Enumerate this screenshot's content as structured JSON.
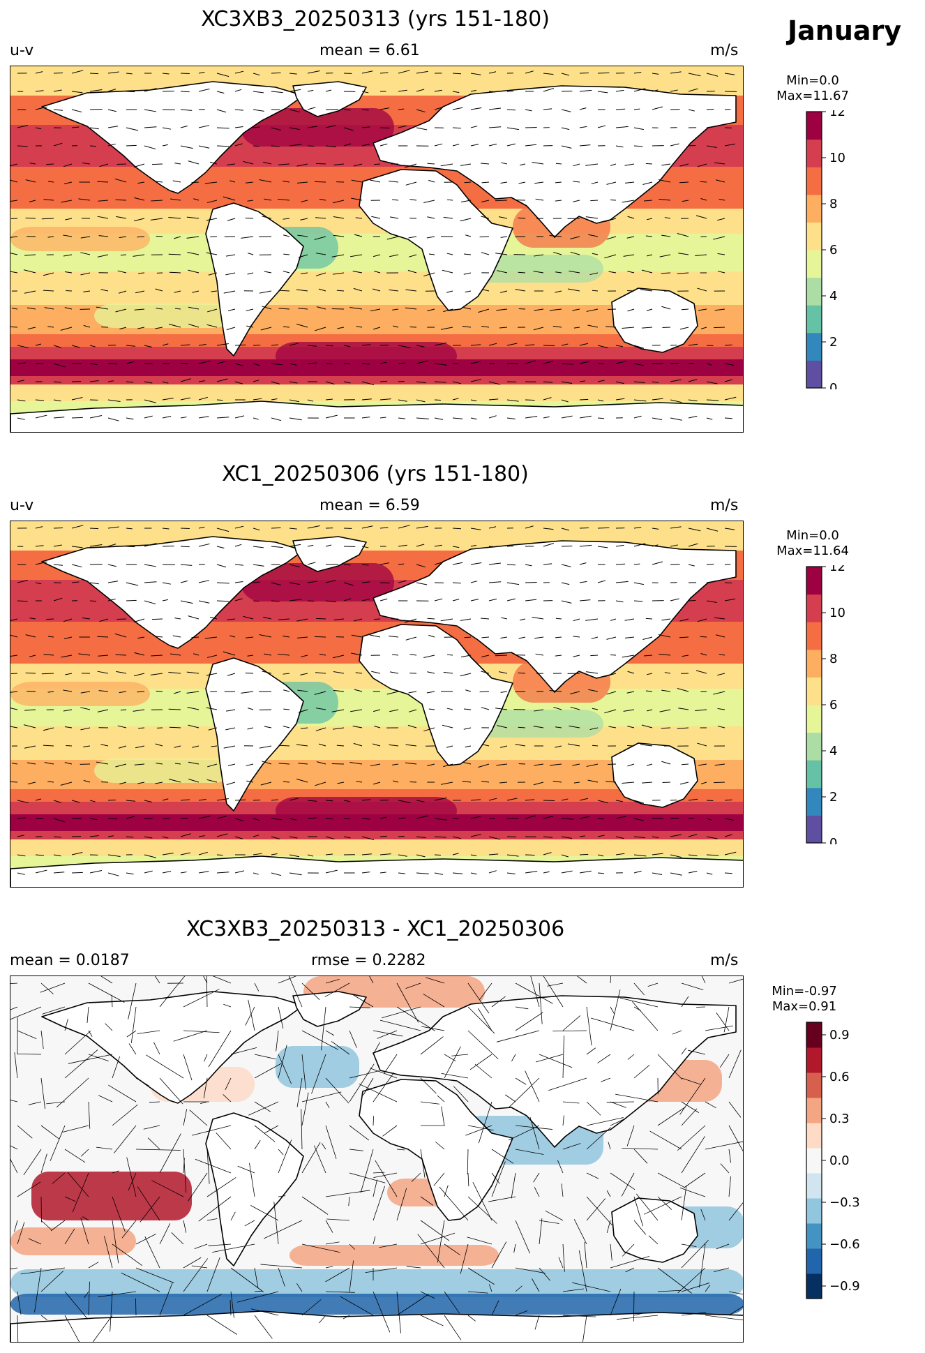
{
  "month": "January",
  "panels": [
    {
      "title": "XC3XB3_20250313 (yrs 151-180)",
      "left_label": "u-v",
      "center_label": "mean = 6.61",
      "right_label": "m/s",
      "cbar_min": "Min=0.0",
      "cbar_max": "Max=11.67",
      "cbar_ticks": [
        "0",
        "2",
        "4",
        "6",
        "8",
        "10",
        "12"
      ],
      "cmap": "spectral"
    },
    {
      "title": "XC1_20250306 (yrs 151-180)",
      "left_label": "u-v",
      "center_label": "mean = 6.59",
      "right_label": "m/s",
      "cbar_min": "Min=0.0",
      "cbar_max": "Max=11.64",
      "cbar_ticks": [
        "0",
        "2",
        "4",
        "6",
        "8",
        "10",
        "12"
      ],
      "cmap": "spectral"
    },
    {
      "title": "XC3XB3_20250313 - XC1_20250306",
      "left_label": "mean = 0.0187",
      "center_label": "rmse = 0.2282",
      "right_label": "m/s",
      "cbar_min": "Min=-0.97",
      "cbar_max": "Max=0.91",
      "cbar_ticks": [
        "−0.9",
        "−0.6",
        "−0.3",
        "0.0",
        "0.3",
        "0.6",
        "0.9"
      ],
      "cmap": "diverging"
    }
  ],
  "colors": {
    "spectral": [
      "#5e4fa2",
      "#3288bd",
      "#66c2a5",
      "#abdda4",
      "#e6f598",
      "#fee08b",
      "#fdae61",
      "#f46d43",
      "#d53e4f",
      "#9e0142"
    ],
    "diverging": [
      "#053061",
      "#2166ac",
      "#4393c3",
      "#92c5de",
      "#d1e5f0",
      "#f7f7f7",
      "#fddbc7",
      "#f4a582",
      "#d6604d",
      "#b2182b",
      "#67001f"
    ],
    "land": "#ffffff",
    "coast": "#000000"
  }
}
